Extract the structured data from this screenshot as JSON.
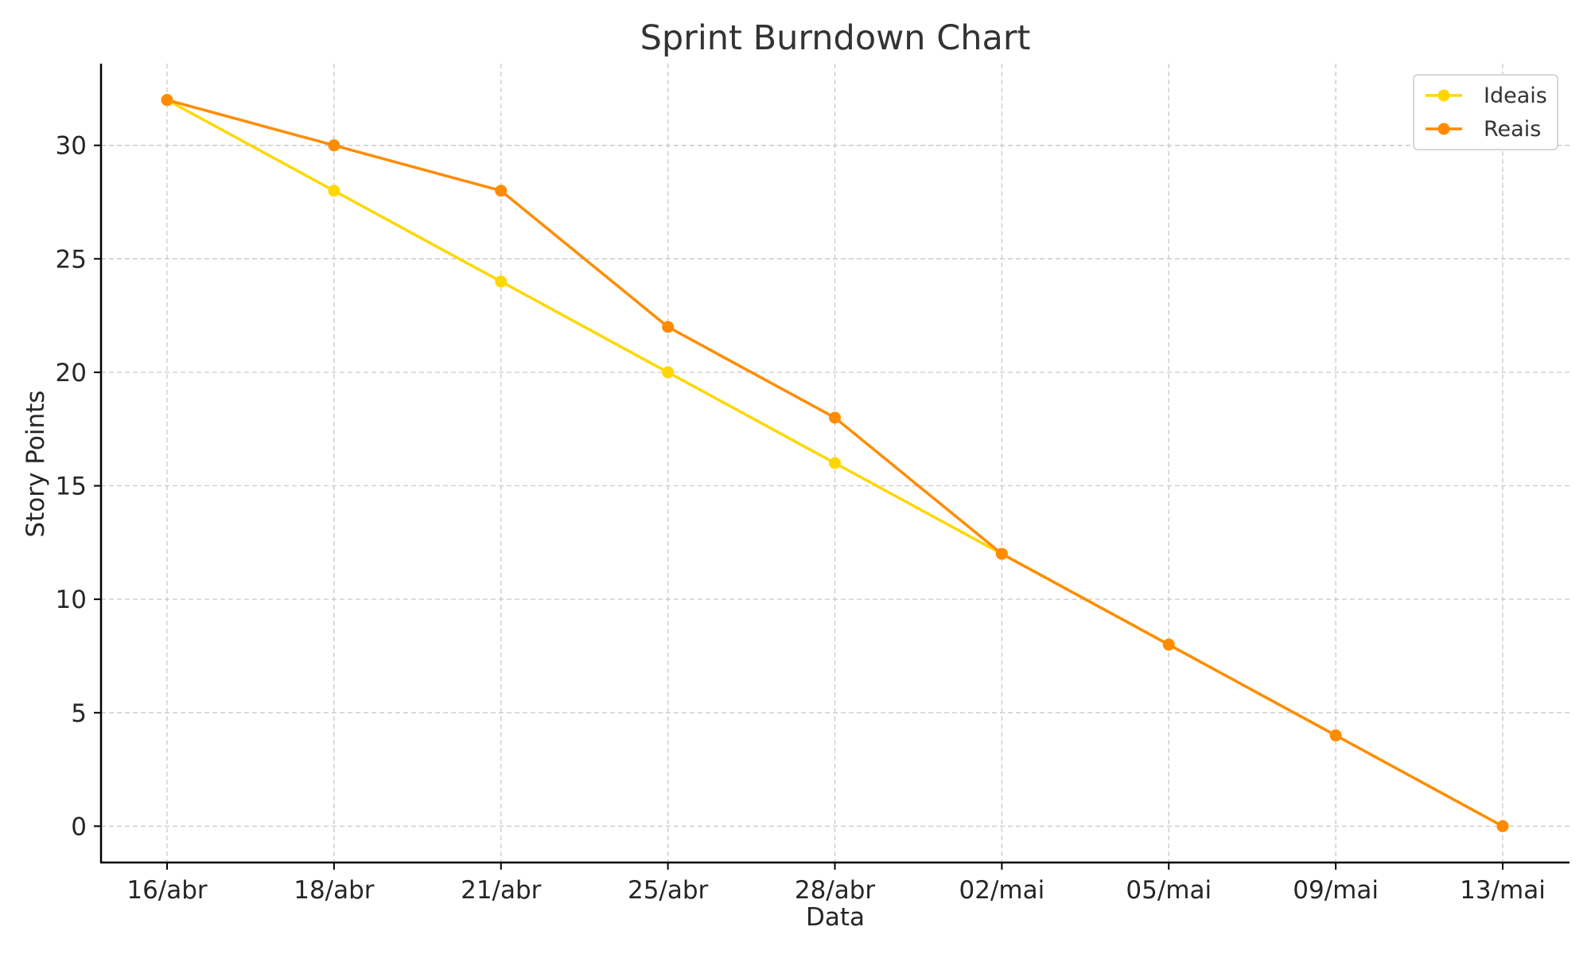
{
  "chart_data": {
    "type": "line",
    "title": "Sprint Burndown Chart",
    "xlabel": "Data",
    "ylabel": "Story Points",
    "categories": [
      "16/abr",
      "18/abr",
      "21/abr",
      "25/abr",
      "28/abr",
      "02/mai",
      "05/mai",
      "09/mai",
      "13/mai"
    ],
    "yticks": [
      "0",
      "5",
      "10",
      "15",
      "20",
      "25",
      "30"
    ],
    "ylim": [
      -1.6,
      33.6
    ],
    "grid": true,
    "legend_position": "top-right",
    "series": [
      {
        "name": "Ideais",
        "color": "#FFD700",
        "values": [
          32,
          28,
          24,
          20,
          16,
          12,
          8,
          4,
          0
        ]
      },
      {
        "name": "Reais",
        "color": "#FF8C00",
        "values": [
          32,
          30,
          28,
          22,
          18,
          12,
          8,
          4,
          0
        ]
      }
    ]
  }
}
